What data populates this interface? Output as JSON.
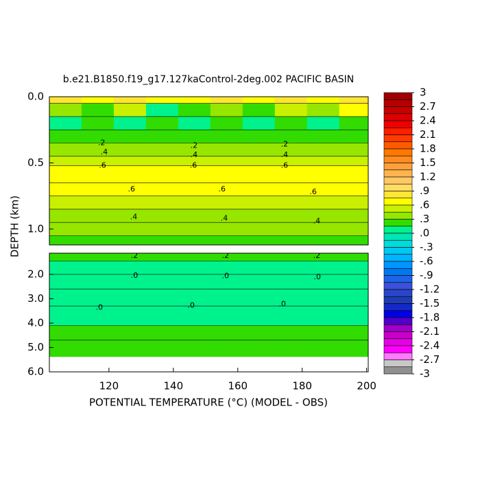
{
  "chart_data": {
    "type": "contour",
    "title": "b.e21.B1850.f19_g17.127kaControl-2deg.002 PACIFIC BASIN",
    "x_label": "POTENTIAL TEMPERATURE (°C) (MODEL - OBS)",
    "y_label": "DEPTH (km)",
    "xlim": [
      101.5,
      200.5
    ],
    "xticks": [
      120,
      140,
      160,
      180,
      200
    ],
    "x": [
      101.5,
      111.5,
      121.5,
      131.5,
      141.5,
      151.5,
      161.5,
      171.5,
      181.5,
      191.5,
      201.5
    ],
    "panels": [
      {
        "ylim": [
          0,
          1.12
        ],
        "yticks": [
          {
            "value": 0,
            "label": "0.0"
          },
          {
            "value": 0.5,
            "label": "0.5"
          },
          {
            "value": 1,
            "label": "1.0"
          }
        ],
        "y": [
          0,
          0.05,
          0.15,
          0.25,
          0.35,
          0.45,
          0.52,
          0.65,
          0.75,
          0.85,
          0.95,
          1.05,
          1.12
        ],
        "z": [
          [
            0.8,
            0.65,
            0.9,
            0.7,
            0.6,
            0.85,
            0.7,
            0.9,
            0.65,
            0.8
          ],
          [
            0.4,
            0.2,
            0.5,
            0.1,
            0.3,
            0.45,
            0.2,
            0.5,
            0.35,
            0.6
          ],
          [
            0.1,
            0.2,
            0.05,
            0.2,
            0.1,
            0.25,
            0.1,
            0.2,
            0.05,
            0.2
          ],
          [
            0.25,
            0.25,
            0.25,
            0.25,
            0.25,
            0.25,
            0.25,
            0.25,
            0.25,
            0.25
          ],
          [
            0.38,
            0.38,
            0.38,
            0.38,
            0.38,
            0.38,
            0.38,
            0.38,
            0.38,
            0.38
          ],
          [
            0.5,
            0.5,
            0.5,
            0.5,
            0.5,
            0.5,
            0.5,
            0.5,
            0.5,
            0.5
          ],
          [
            0.68,
            0.68,
            0.68,
            0.68,
            0.68,
            0.68,
            0.68,
            0.68,
            0.68,
            0.68
          ],
          [
            0.65,
            0.65,
            0.65,
            0.65,
            0.65,
            0.65,
            0.65,
            0.65,
            0.65,
            0.65
          ],
          [
            0.55,
            0.55,
            0.55,
            0.55,
            0.55,
            0.55,
            0.55,
            0.55,
            0.55,
            0.55
          ],
          [
            0.45,
            0.45,
            0.45,
            0.45,
            0.45,
            0.45,
            0.45,
            0.45,
            0.45,
            0.45
          ],
          [
            0.35,
            0.35,
            0.35,
            0.35,
            0.35,
            0.35,
            0.35,
            0.35,
            0.35,
            0.35
          ],
          [
            0.25,
            0.25,
            0.25,
            0.25,
            0.25,
            0.25,
            0.25,
            0.25,
            0.25,
            0.25
          ]
        ],
        "contour_labels": [
          {
            "x": 117.7,
            "y": 0.35,
            "value": 0.2,
            "label": ".2"
          },
          {
            "x": 118.5,
            "y": 0.42,
            "value": 0.4,
            "label": ".4"
          },
          {
            "x": 118,
            "y": 0.52,
            "value": 0.6,
            "label": ".6"
          },
          {
            "x": 146.4,
            "y": 0.37,
            "value": 0.2,
            "label": ".2"
          },
          {
            "x": 146.4,
            "y": 0.44,
            "value": 0.4,
            "label": ".4"
          },
          {
            "x": 146.2,
            "y": 0.52,
            "value": 0.6,
            "label": ".6"
          },
          {
            "x": 174.5,
            "y": 0.36,
            "value": 0.2,
            "label": ".2"
          },
          {
            "x": 174.5,
            "y": 0.44,
            "value": 0.4,
            "label": ".4"
          },
          {
            "x": 174.5,
            "y": 0.52,
            "value": 0.6,
            "label": ".6"
          },
          {
            "x": 127,
            "y": 0.7,
            "value": 0.6,
            "label": ".6"
          },
          {
            "x": 155.1,
            "y": 0.7,
            "value": 0.6,
            "label": ".6"
          },
          {
            "x": 183.4,
            "y": 0.72,
            "value": 0.6,
            "label": ".6"
          },
          {
            "x": 127.7,
            "y": 0.91,
            "value": 0.4,
            "label": ".4"
          },
          {
            "x": 155.8,
            "y": 0.92,
            "value": 0.4,
            "label": ".4"
          },
          {
            "x": 184.5,
            "y": 0.94,
            "value": 0.4,
            "label": ".4"
          }
        ]
      },
      {
        "ylim": [
          1.13,
          6
        ],
        "yticks": [
          {
            "value": 2,
            "label": "2.0"
          },
          {
            "value": 3,
            "label": "3.0"
          },
          {
            "value": 4,
            "label": "4.0"
          },
          {
            "value": 5,
            "label": "5.0"
          },
          {
            "value": 6,
            "label": "6.0"
          }
        ],
        "y": [
          1.13,
          1.45,
          2.0,
          2.6,
          3.3,
          4.1,
          4.7,
          5.37
        ],
        "z": [
          [
            0.2,
            0.2,
            0.2,
            0.2,
            0.2,
            0.2,
            0.2,
            0.2,
            0.2,
            0.2
          ],
          [
            0.12,
            0.12,
            0.12,
            0.12,
            0.12,
            0.12,
            0.12,
            0.12,
            0.12,
            0.12
          ],
          [
            0.08,
            0.08,
            0.08,
            0.08,
            0.08,
            0.08,
            0.08,
            0.08,
            0.08,
            0.08
          ],
          [
            0.06,
            0.06,
            0.06,
            0.06,
            0.06,
            0.06,
            0.06,
            0.06,
            0.06,
            0.06
          ],
          [
            0.1,
            0.1,
            0.1,
            0.1,
            0.1,
            0.1,
            0.1,
            0.1,
            0.1,
            0.1
          ],
          [
            0.2,
            0.2,
            0.2,
            0.2,
            0.2,
            0.2,
            0.2,
            0.2,
            0.2,
            0.2
          ],
          [
            0.22,
            0.22,
            0.22,
            0.22,
            0.22,
            0.22,
            0.22,
            0.22,
            0.22,
            0.22
          ]
        ],
        "contour_labels": [
          {
            "x": 127.9,
            "y": 1.24,
            "value": 0.2,
            "label": ".2"
          },
          {
            "x": 156.2,
            "y": 1.24,
            "value": 0.2,
            "label": ".2"
          },
          {
            "x": 184.5,
            "y": 1.24,
            "value": 0.2,
            "label": ".2"
          },
          {
            "x": 127.9,
            "y": 2.06,
            "value": 0,
            "label": ".0"
          },
          {
            "x": 156.2,
            "y": 2.08,
            "value": 0,
            "label": ".0"
          },
          {
            "x": 184.7,
            "y": 2.11,
            "value": 0,
            "label": ".0"
          },
          {
            "x": 117,
            "y": 3.37,
            "value": 0,
            "label": ".0"
          },
          {
            "x": 145.5,
            "y": 3.28,
            "value": 0,
            "label": ".0"
          },
          {
            "x": 173.8,
            "y": 3.23,
            "value": 0,
            "label": ".0"
          }
        ]
      }
    ],
    "colorbar": {
      "ticks": [
        3,
        2.7,
        2.4,
        2.1,
        1.8,
        1.5,
        1.2,
        {
          "value": 0.9,
          "label": ".9"
        },
        {
          "value": 0.6,
          "label": ".6"
        },
        {
          "value": 0.3,
          "label": ".3"
        },
        {
          "value": 0,
          "label": ".0"
        },
        {
          "value": -0.3,
          "label": "-.3"
        },
        {
          "value": -0.6,
          "label": "-.6"
        },
        {
          "value": -0.9,
          "label": "-.9"
        },
        -1.2,
        -1.5,
        -1.8,
        -2.1,
        -2.4,
        -2.7,
        -3
      ],
      "colors": [
        "#a00000",
        "#b40000",
        "#c80000",
        "#dc0000",
        "#f00000",
        "#ff1e00",
        "#ff3c00",
        "#ff5a00",
        "#ff7800",
        "#ff8c1e",
        "#ffa03c",
        "#ffb450",
        "#ffc864",
        "#ffdc64",
        "#ffe632",
        "#ffff00",
        "#c8f000",
        "#96e600",
        "#32dc00",
        "#00f28c",
        "#00e6b4",
        "#00dcdc",
        "#00c8f0",
        "#00b4ff",
        "#0096ff",
        "#0078f0",
        "#1e64e6",
        "#3c50dc",
        "#2846c8",
        "#1e3cb4",
        "#1428c8",
        "#0000e6",
        "#5000c8",
        "#a000c8",
        "#c800c8",
        "#e600e6",
        "#ff00ff",
        "#ff78ff",
        "#c8c8c8",
        "#909090"
      ]
    }
  }
}
